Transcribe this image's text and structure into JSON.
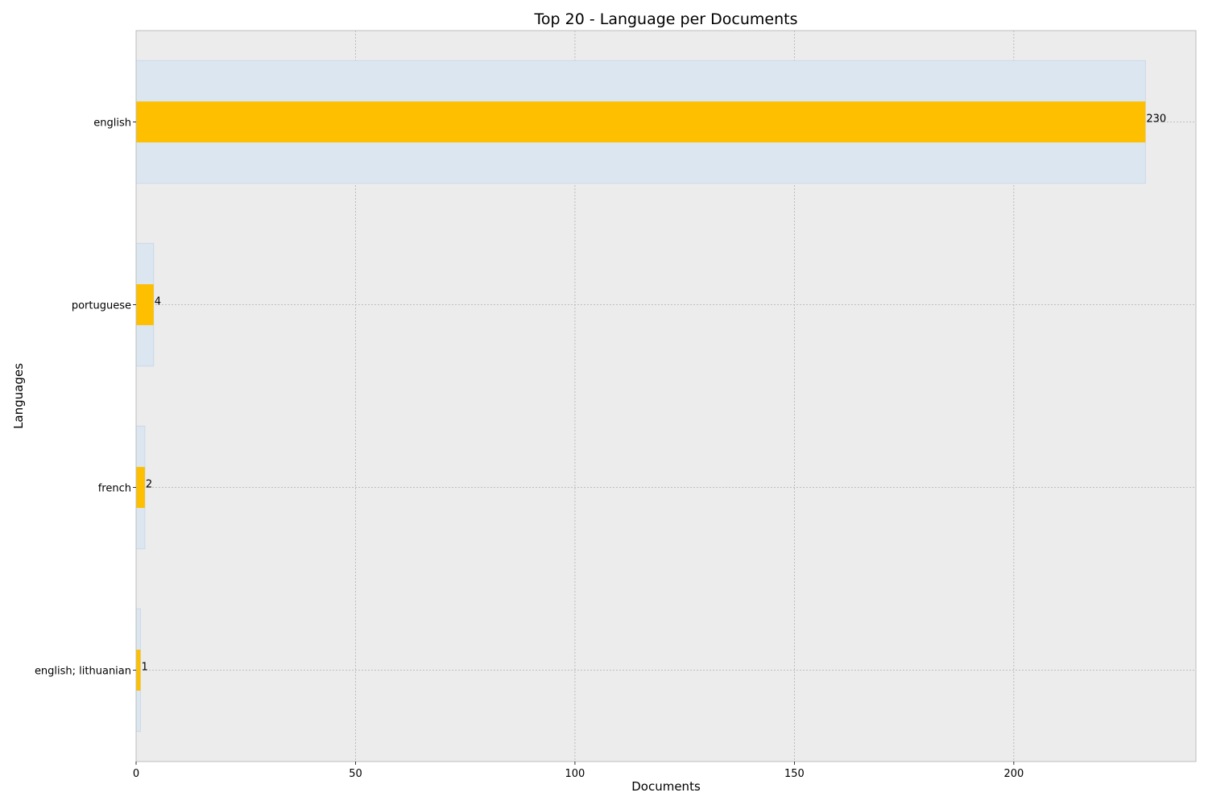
{
  "chart_data": {
    "type": "bar",
    "orientation": "horizontal",
    "title": "Top 20 - Language per Documents",
    "xlabel": "Documents",
    "ylabel": "Languages",
    "categories": [
      "english",
      "portuguese",
      "french",
      "english; lithuanian"
    ],
    "values": [
      230,
      4,
      2,
      1
    ],
    "xlim": [
      0,
      241.5
    ],
    "xticks": [
      0,
      50,
      100,
      150,
      200
    ],
    "grid": true,
    "legend": "none",
    "colors": {
      "bar": "#fdbf00",
      "background_bar": "#dce6f1",
      "background_bar_edge": "#c5d5e8",
      "plot_background": "#ececec",
      "grid": "#b0b0b0",
      "frame": "#bcbcbc"
    }
  }
}
